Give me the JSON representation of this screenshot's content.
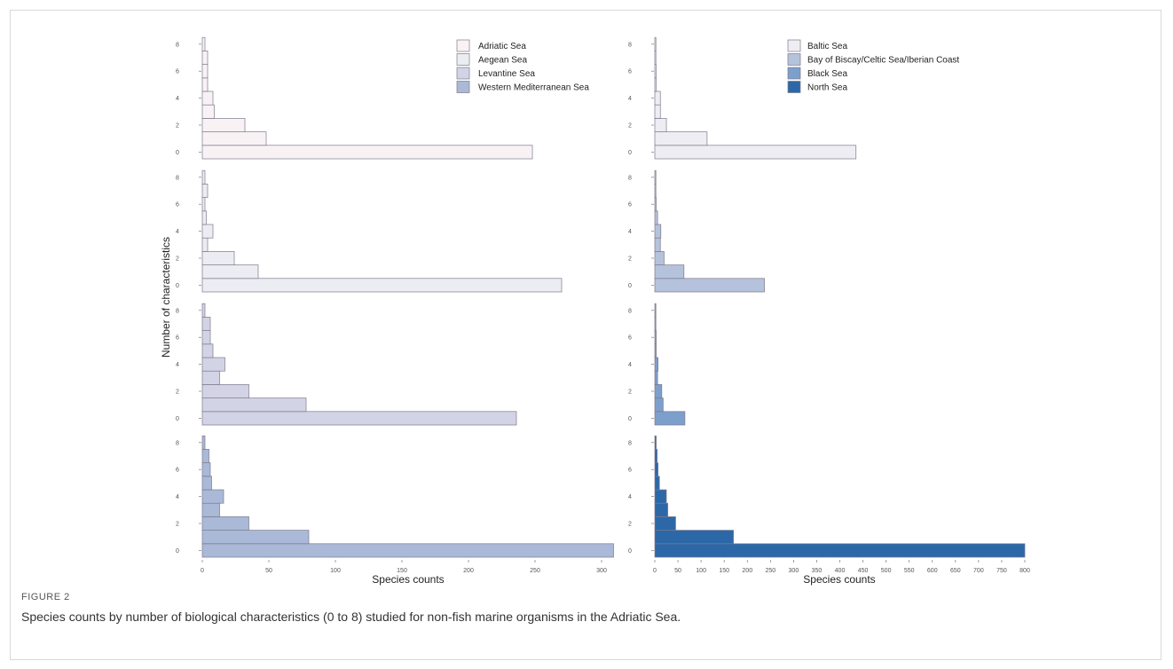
{
  "figure": {
    "label": "FIGURE 2",
    "caption": "Species counts by number of biological characteristics (0 to 8) studied for non-fish marine organisms in the Adriatic Sea."
  },
  "chart_data": [
    {
      "type": "bar",
      "orientation": "horizontal",
      "ylabel": "Number of characteristics",
      "xlabel": "Species counts",
      "y_ticks": [
        "0",
        "2",
        "4",
        "6",
        "8"
      ],
      "xlim": [
        0,
        310
      ],
      "x_ticks": [
        0,
        50,
        100,
        150,
        200,
        250,
        300
      ],
      "categories": [
        0,
        1,
        2,
        3,
        4,
        5,
        6,
        7,
        8
      ],
      "legend": {
        "position": "top-right",
        "entries": [
          "Adriatic Sea",
          "Aegean Sea",
          "Levantine Sea",
          "Western Mediterranean Sea"
        ]
      },
      "series": [
        {
          "name": "Adriatic Sea",
          "color": "#f9f2f5",
          "values": [
            248,
            48,
            32,
            9,
            8,
            4,
            4,
            4,
            2
          ]
        },
        {
          "name": "Aegean Sea",
          "color": "#ececf3",
          "values": [
            270,
            42,
            24,
            4,
            8,
            3,
            2,
            4,
            2
          ]
        },
        {
          "name": "Levantine Sea",
          "color": "#d2d4e6",
          "values": [
            236,
            78,
            35,
            13,
            17,
            8,
            6,
            6,
            2
          ]
        },
        {
          "name": "Western Mediterranean Sea",
          "color": "#aab9d8",
          "values": [
            309,
            80,
            35,
            13,
            16,
            7,
            6,
            5,
            2
          ]
        }
      ]
    },
    {
      "type": "bar",
      "orientation": "horizontal",
      "ylabel": "",
      "xlabel": "Species counts",
      "y_ticks": [
        "0",
        "2",
        "4",
        "6",
        "8"
      ],
      "xlim": [
        0,
        800
      ],
      "x_ticks": [
        0,
        50,
        100,
        150,
        200,
        250,
        300,
        350,
        400,
        450,
        500,
        550,
        600,
        650,
        700,
        750,
        800
      ],
      "categories": [
        0,
        1,
        2,
        3,
        4,
        5,
        6,
        7,
        8
      ],
      "legend": {
        "position": "top-right",
        "entries": [
          "Baltic Sea",
          "Bay of Biscay/Celtic Sea/Iberian Coast",
          "Black Sea",
          "North Sea"
        ]
      },
      "series": [
        {
          "name": "Baltic Sea",
          "color": "#eeedf3",
          "values": [
            435,
            113,
            25,
            12,
            12,
            3,
            3,
            2,
            2
          ]
        },
        {
          "name": "Bay of Biscay/Celtic Sea/Iberian Coast",
          "color": "#b5c2dc",
          "values": [
            237,
            63,
            20,
            12,
            13,
            6,
            3,
            2,
            2
          ]
        },
        {
          "name": "Black Sea",
          "color": "#7d9fcb",
          "values": [
            65,
            18,
            15,
            6,
            7,
            3,
            3,
            2,
            2
          ]
        },
        {
          "name": "North Sea",
          "color": "#2c68a7",
          "values": [
            800,
            170,
            45,
            28,
            25,
            10,
            7,
            5,
            3
          ]
        }
      ]
    }
  ]
}
